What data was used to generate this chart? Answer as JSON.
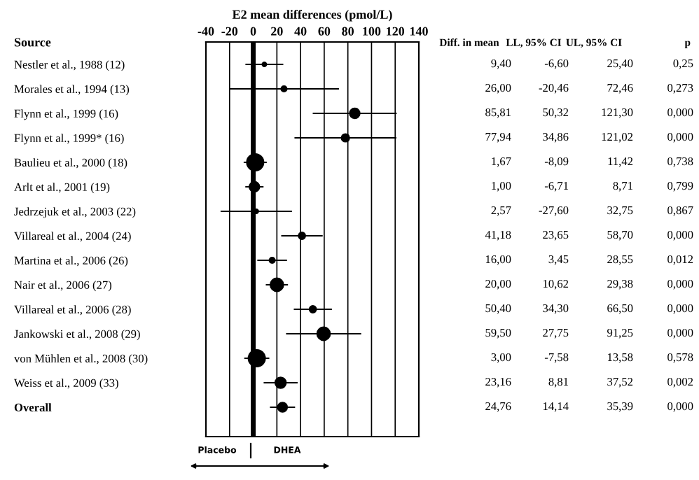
{
  "chart_data": {
    "type": "bubble",
    "orientation": "horizontal",
    "title": "E2 mean differences (pmol/L)",
    "categories": [
      "Nestler et al., 1988 (12)",
      "Morales et al., 1994 (13)",
      "Flynn et al., 1999 (16)",
      "Flynn et al., 1999* (16)",
      "Baulieu et al., 2000 (18)",
      "Arlt et al., 2001 (19)",
      "Jedrzejuk et al., 2003 (22)",
      "Villareal et al., 2004 (24)",
      "Martina et al., 2006 (26)",
      "Nair et al., 2006 (27)",
      "Villareal et al., 2006 (28)",
      "Jankowski et al., 2008 (29)",
      "von Mühlen et al., 2008 (30)",
      "Weiss et al., 2009 (33)",
      "Overall"
    ],
    "values": [
      9.4,
      26.0,
      85.81,
      77.94,
      1.67,
      1.0,
      2.57,
      41.18,
      16.0,
      20.0,
      50.4,
      59.5,
      3.0,
      23.16,
      24.76
    ],
    "errors": [
      [
        -6.6,
        25.4
      ],
      [
        -20.46,
        72.46
      ],
      [
        50.32,
        121.3
      ],
      [
        34.86,
        121.02
      ],
      [
        -8.09,
        11.42
      ],
      [
        -6.71,
        8.71
      ],
      [
        -27.6,
        32.75
      ],
      [
        23.65,
        58.7
      ],
      [
        3.45,
        28.55
      ],
      [
        10.62,
        29.38
      ],
      [
        34.3,
        66.5
      ],
      [
        27.75,
        91.25
      ],
      [
        -7.58,
        13.58
      ],
      [
        8.81,
        37.52
      ],
      [
        14.14,
        35.39
      ]
    ],
    "sizes": [
      0.05,
      0.1,
      0.35,
      0.2,
      1,
      0.35,
      0.05,
      0.15,
      0.1,
      0.6,
      0.15,
      0.6,
      1,
      0.4,
      0.3
    ],
    "value_labels": [
      "9,40",
      "26,00",
      "85,81",
      "77,94",
      "1,67",
      "1,00",
      "2,57",
      "41,18",
      "16,00",
      "20,00",
      "50,40",
      "59,50",
      "3,00",
      "23,16",
      "24,76"
    ],
    "color": "#000000",
    "marker": "circle",
    "grid": "x",
    "legend": false,
    "xlim": [
      -40,
      140
    ],
    "xticks": [
      -40,
      -20,
      0,
      20,
      40,
      60,
      80,
      100,
      120,
      140
    ],
    "ref_lines": [
      {
        "axis": "x",
        "value": 0,
        "label": null
      }
    ],
    "annotations": [
      "Source",
      "Diff. in mean",
      "LL, 95% CI",
      "UL, 95% CI",
      "p",
      "-6,60",
      "-20,46",
      "50,32",
      "34,86",
      "-8,09",
      "-6,71",
      "-27,60",
      "23,65",
      "3,45",
      "10,62",
      "34,30",
      "27,75",
      "-7,58",
      "8,81",
      "14,14",
      "25,40",
      "72,46",
      "121,30",
      "121,02",
      "11,42",
      "8,71",
      "32,75",
      "58,70",
      "28,55",
      "29,38",
      "66,50",
      "91,25",
      "13,58",
      "37,52",
      "35,39",
      "0,25",
      "0,273",
      "0,000",
      "0,000",
      "0,738",
      "0,799",
      "0,867",
      "0,000",
      "0,012",
      "0,000",
      "0,000",
      "0,000",
      "0,578",
      "0,002",
      "0,000",
      "Placebo",
      "DHEA"
    ]
  }
}
